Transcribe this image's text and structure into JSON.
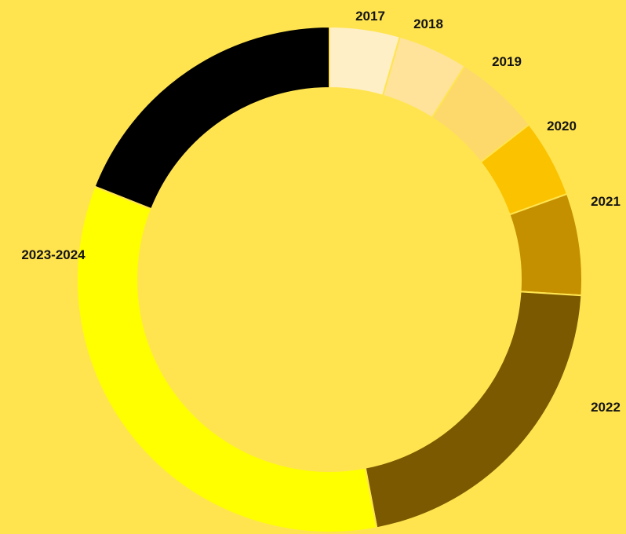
{
  "chart_data": {
    "type": "pie",
    "variant": "donut",
    "title": "",
    "categories": [
      "2017",
      "2018",
      "2019",
      "2020",
      "2021",
      "2022",
      "2023-2024",
      ""
    ],
    "values": [
      4.5,
      4.5,
      5.5,
      5.0,
      6.5,
      21.0,
      34.0,
      19.0
    ],
    "colors": [
      "#FFEFC6",
      "#FFE39A",
      "#FDD86B",
      "#FBC200",
      "#C59000",
      "#7A5900",
      "#FFFF00",
      "#000000"
    ],
    "background": "#FFE450",
    "legend": "none"
  }
}
